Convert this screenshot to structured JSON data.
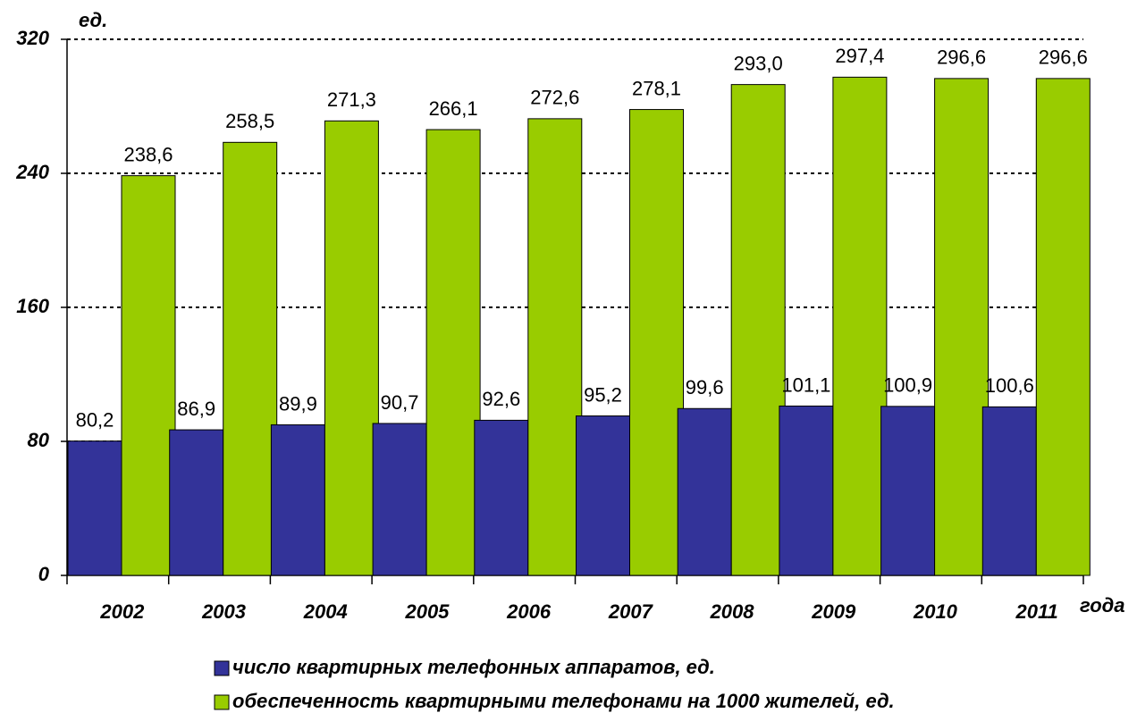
{
  "chart_data": {
    "type": "bar",
    "y_label": "ед.",
    "x_label": "года",
    "categories": [
      "2002",
      "2003",
      "2004",
      "2005",
      "2006",
      "2007",
      "2008",
      "2009",
      "2010",
      "2011"
    ],
    "series": [
      {
        "name": "число квартирных телефонных аппаратов, ед.",
        "color": "#333399",
        "values": [
          80.2,
          86.9,
          89.9,
          90.7,
          92.6,
          95.2,
          99.6,
          101.1,
          100.9,
          100.6
        ],
        "value_labels": [
          "80,2",
          "86,9",
          "89,9",
          "90,7",
          "92,6",
          "95,2",
          "99,6",
          "101,1",
          "100,9",
          "100,6"
        ]
      },
      {
        "name": "обеспеченность квартирными телефонами на 1000 жителей, ед.",
        "color": "#99cc00",
        "values": [
          238.6,
          258.5,
          271.3,
          266.1,
          272.6,
          278.1,
          293.0,
          297.4,
          296.6,
          296.6
        ],
        "value_labels": [
          "238,6",
          "258,5",
          "271,3",
          "266,1",
          "272,6",
          "278,1",
          "293,0",
          "297,4",
          "296,6",
          "296,6"
        ]
      }
    ],
    "ylim": [
      0,
      320
    ],
    "yticks": [
      0,
      80,
      160,
      240,
      320
    ],
    "grid": true,
    "legend": "bottom"
  }
}
